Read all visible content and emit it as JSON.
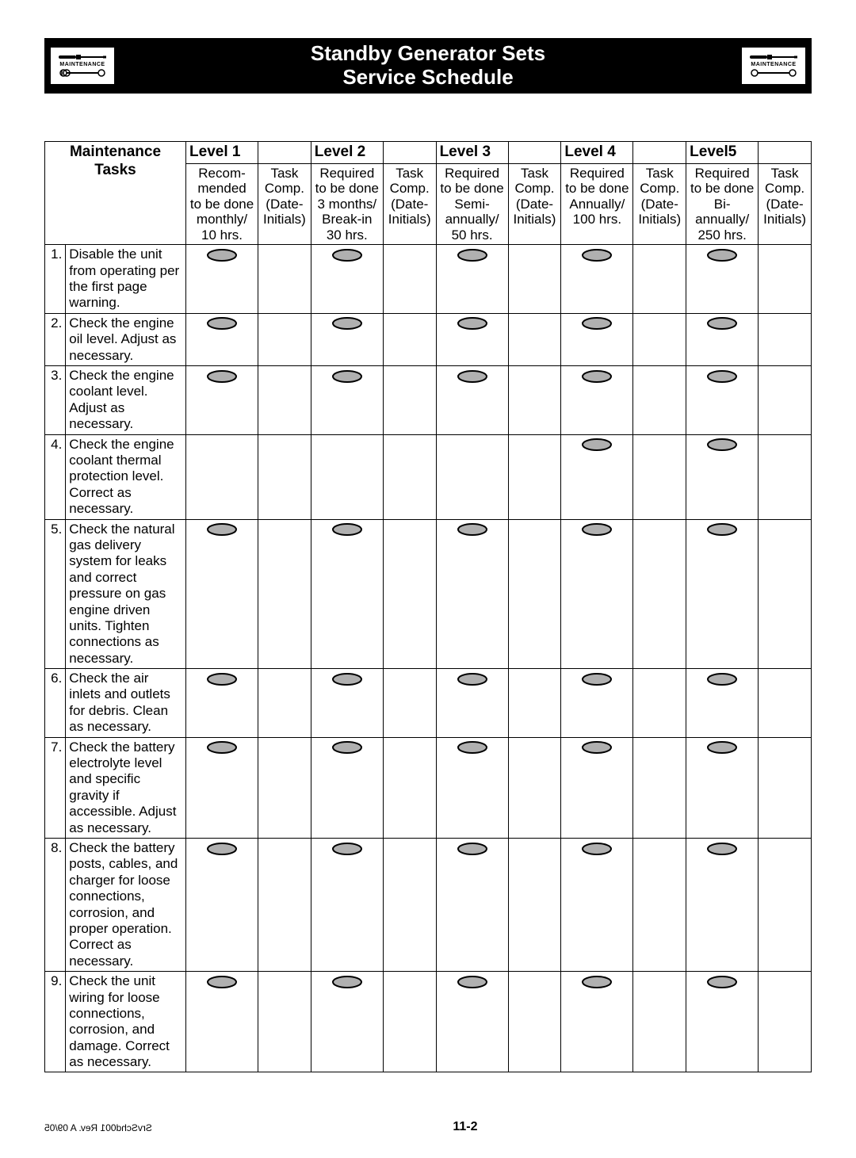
{
  "banner": {
    "title_line1": "Standby Generator Sets",
    "title_line2": "Service Schedule",
    "icon_label": "MAINTENANCE"
  },
  "colors": {
    "banner_bg": "#000000",
    "banner_fg": "#ffffff",
    "oval_fill": "#b0b0b0",
    "oval_stroke": "#000000",
    "border": "#000000"
  },
  "header": {
    "tasks_label_line1": "Maintenance",
    "tasks_label_line2": "Tasks",
    "levels": [
      {
        "title": "Level 1",
        "desc": [
          "Recom-",
          "mended",
          "to be done",
          "monthly/",
          "10 hrs."
        ],
        "init": [
          "Task",
          "Comp.",
          "(Date-",
          "Initials)"
        ]
      },
      {
        "title": "Level 2",
        "desc": [
          "Required",
          "to be done",
          "3 months/",
          "Break-in",
          "30 hrs."
        ],
        "init": [
          "Task",
          "Comp.",
          "(Date-",
          "Initials)"
        ]
      },
      {
        "title": "Level 3",
        "desc": [
          "Required",
          "to be done",
          "Semi-",
          "annually/",
          "50 hrs."
        ],
        "init": [
          "Task",
          "Comp.",
          "(Date-",
          "Initials)"
        ]
      },
      {
        "title": "Level 4",
        "desc": [
          "",
          "Required",
          "to be done",
          "Annually/",
          "100 hrs."
        ],
        "init": [
          "Task",
          "Comp.",
          "(Date-",
          "Initials)"
        ]
      },
      {
        "title": "Level5",
        "desc": [
          "Required",
          "to be done",
          "Bi-",
          "annually/",
          "250 hrs."
        ],
        "init": [
          "Task",
          "Comp.",
          "(Date-",
          "Initials)"
        ]
      }
    ]
  },
  "tasks": [
    {
      "n": "1.",
      "text": "Disable the unit from operating per the first page warning.",
      "marks": [
        true,
        true,
        true,
        true,
        true
      ]
    },
    {
      "n": "2.",
      "text": "Check the engine oil level. Adjust as necessary.",
      "marks": [
        true,
        true,
        true,
        true,
        true
      ]
    },
    {
      "n": "3.",
      "text": "Check the engine coolant level. Adjust as necessary.",
      "marks": [
        true,
        true,
        true,
        true,
        true
      ]
    },
    {
      "n": "4.",
      "text": "Check the engine coolant thermal protection level. Correct as necessary.",
      "marks": [
        false,
        false,
        false,
        true,
        true
      ]
    },
    {
      "n": "5.",
      "text": "Check the natural gas delivery system for leaks and correct pressure on gas engine driven units. Tighten connections as necessary.",
      "marks": [
        true,
        true,
        true,
        true,
        true
      ]
    },
    {
      "n": "6.",
      "text": "Check the air inlets and outlets for debris. Clean as necessary.",
      "marks": [
        true,
        true,
        true,
        true,
        true
      ]
    },
    {
      "n": "7.",
      "text": "Check the battery electrolyte level and specific gravity if accessible. Adjust as necessary.",
      "marks": [
        true,
        true,
        true,
        true,
        true
      ]
    },
    {
      "n": "8.",
      "text": "Check the battery posts, cables, and charger for loose connections, corrosion, and proper operation. Correct as necessary.",
      "marks": [
        true,
        true,
        true,
        true,
        true
      ]
    },
    {
      "n": "9.",
      "text": "Check the unit wiring for loose connections, corrosion, and damage. Correct as necessary.",
      "marks": [
        true,
        true,
        true,
        true,
        true
      ]
    }
  ],
  "footer": {
    "rev_text": "SrvSchd001  Rev. A  09/05",
    "page_num": "11-2"
  },
  "oval_svg": {
    "w": 40,
    "h": 16,
    "rx": 18,
    "ry": 7,
    "stroke_w": 2
  }
}
